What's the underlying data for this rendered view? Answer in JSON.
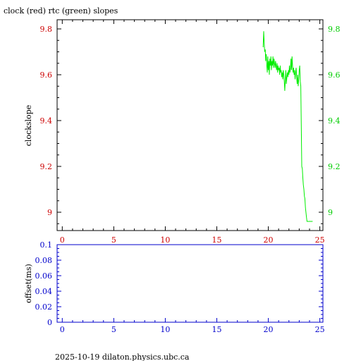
{
  "header": {
    "title": "clock (red) rtc (green) slopes"
  },
  "footer": {
    "text": "2025-10-19  dilaton.physics.ubc.ca"
  },
  "chart_data": [
    {
      "type": "line",
      "title": "clock (red) rtc (green) slopes",
      "ylabel": "clockslope",
      "xlim": [
        -0.5,
        25.3
      ],
      "ylim": [
        8.92,
        9.84
      ],
      "x_ticks": [
        "0",
        "5",
        "10",
        "15",
        "20",
        "25"
      ],
      "x_tick_values": [
        0,
        5,
        10,
        15,
        20,
        25
      ],
      "y_ticks": [
        "9",
        "9.2",
        "9.4",
        "9.6",
        "9.8"
      ],
      "y_tick_values": [
        9.0,
        9.2,
        9.4,
        9.6,
        9.8
      ],
      "colors": {
        "axis": "#000000",
        "left_ticks": "#cc0000",
        "right_ticks": "#00cc00",
        "series": "#00ee00"
      },
      "series": [
        {
          "color": "#00ee00",
          "x": [
            19.5,
            19.55,
            19.6,
            19.65,
            19.7,
            19.75,
            19.8,
            19.85,
            19.9,
            19.95,
            20.0,
            20.05,
            20.1,
            20.15,
            20.2,
            20.25,
            20.3,
            20.35,
            20.4,
            20.45,
            20.5,
            20.55,
            20.6,
            20.65,
            20.7,
            20.75,
            20.8,
            20.85,
            20.9,
            20.95,
            21.0,
            21.05,
            21.1,
            21.15,
            21.2,
            21.25,
            21.3,
            21.35,
            21.4,
            21.45,
            21.5,
            21.55,
            21.6,
            21.65,
            21.7,
            21.75,
            21.8,
            21.85,
            21.9,
            21.95,
            22.0,
            22.05,
            22.1,
            22.15,
            22.2,
            22.25,
            22.3,
            22.35,
            22.4,
            22.45,
            22.5,
            22.55,
            22.6,
            22.65,
            22.7,
            22.75,
            22.8,
            22.85,
            22.9,
            22.95,
            23.0,
            23.05,
            23.1,
            23.15,
            23.2,
            23.25,
            23.3,
            23.35,
            23.4,
            23.45,
            23.5,
            23.55,
            23.6,
            23.65,
            23.7,
            23.75,
            23.8,
            23.85,
            23.9,
            23.95,
            24.0,
            24.05,
            24.1,
            24.15,
            24.2,
            24.25,
            24.3
          ],
          "values": [
            9.72,
            9.79,
            9.74,
            9.7,
            9.71,
            9.66,
            9.69,
            9.64,
            9.61,
            9.68,
            9.62,
            9.66,
            9.6,
            9.67,
            9.64,
            9.68,
            9.62,
            9.66,
            9.64,
            9.68,
            9.63,
            9.67,
            9.65,
            9.63,
            9.66,
            9.64,
            9.62,
            9.65,
            9.61,
            9.64,
            9.62,
            9.63,
            9.6,
            9.64,
            9.61,
            9.62,
            9.59,
            9.61,
            9.58,
            9.62,
            9.6,
            9.57,
            9.53,
            9.58,
            9.62,
            9.56,
            9.59,
            9.61,
            9.59,
            9.62,
            9.6,
            9.64,
            9.61,
            9.63,
            9.67,
            9.62,
            9.68,
            9.64,
            9.61,
            9.63,
            9.6,
            9.62,
            9.58,
            9.61,
            9.63,
            9.59,
            9.56,
            9.6,
            9.55,
            9.58,
            9.62,
            9.64,
            9.57,
            9.55,
            9.38,
            9.2,
            9.19,
            9.15,
            9.12,
            9.1,
            9.07,
            9.06,
            9.02,
            9.0,
            8.98,
            8.96,
            8.96,
            8.96,
            8.96,
            8.96,
            8.96,
            8.96,
            8.96,
            8.96,
            8.96,
            8.96,
            8.96
          ]
        }
      ]
    },
    {
      "type": "line",
      "ylabel": "offset(ms)",
      "xlim": [
        -0.5,
        25.3
      ],
      "ylim": [
        0,
        0.1
      ],
      "x_ticks": [
        "0",
        "5",
        "10",
        "15",
        "20",
        "25"
      ],
      "x_tick_values": [
        0,
        5,
        10,
        15,
        20,
        25
      ],
      "y_ticks": [
        "0",
        "0.02",
        "0.04",
        "0.06",
        "0.08",
        "0.1"
      ],
      "y_tick_values": [
        0,
        0.02,
        0.04,
        0.06,
        0.08,
        0.1
      ],
      "colors": {
        "axis": "#0000cc"
      },
      "series": []
    }
  ]
}
